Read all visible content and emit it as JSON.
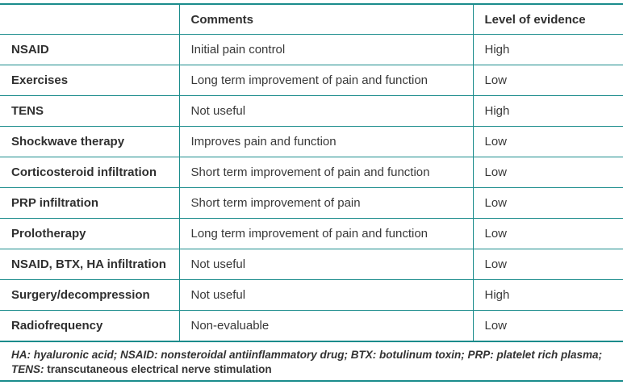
{
  "colors": {
    "rule_teal": "#1b8c8c",
    "text_dark": "#383838",
    "background": "#ffffff"
  },
  "table": {
    "columns": {
      "treatment": "",
      "comments": "Comments",
      "evidence": "Level of evidence"
    },
    "rows": [
      {
        "treatment": "NSAID",
        "comment": "Initial pain control",
        "evidence": "High"
      },
      {
        "treatment": "Exercises",
        "comment": "Long term improvement of pain and function",
        "evidence": "Low"
      },
      {
        "treatment": "TENS",
        "comment": "Not useful",
        "evidence": "High"
      },
      {
        "treatment": "Shockwave therapy",
        "comment": "Improves pain and function",
        "evidence": "Low"
      },
      {
        "treatment": "Corticosteroid infiltration",
        "comment": "Short term improvement of pain and function",
        "evidence": "Low"
      },
      {
        "treatment": "PRP infiltration",
        "comment": "Short term improvement of pain",
        "evidence": "Low"
      },
      {
        "treatment": "Prolotherapy",
        "comment": "Long term improvement of pain and function",
        "evidence": "Low"
      },
      {
        "treatment": "NSAID, BTX, HA infiltration",
        "comment": "Not useful",
        "evidence": "Low"
      },
      {
        "treatment": "Surgery/decompression",
        "comment": "Not useful",
        "evidence": "High"
      },
      {
        "treatment": "Radiofrequency",
        "comment": "Non-evaluable",
        "evidence": "Low"
      }
    ],
    "footnote": {
      "line1": "HA: hyaluronic acid; NSAID: nonsteroidal antiinflammatory drug; BTX: botulinum toxin; PRP: platelet rich plasma;",
      "line2_abbr": "TENS:",
      "line2_rest": " transcutaneous electrical nerve stimulation"
    }
  }
}
